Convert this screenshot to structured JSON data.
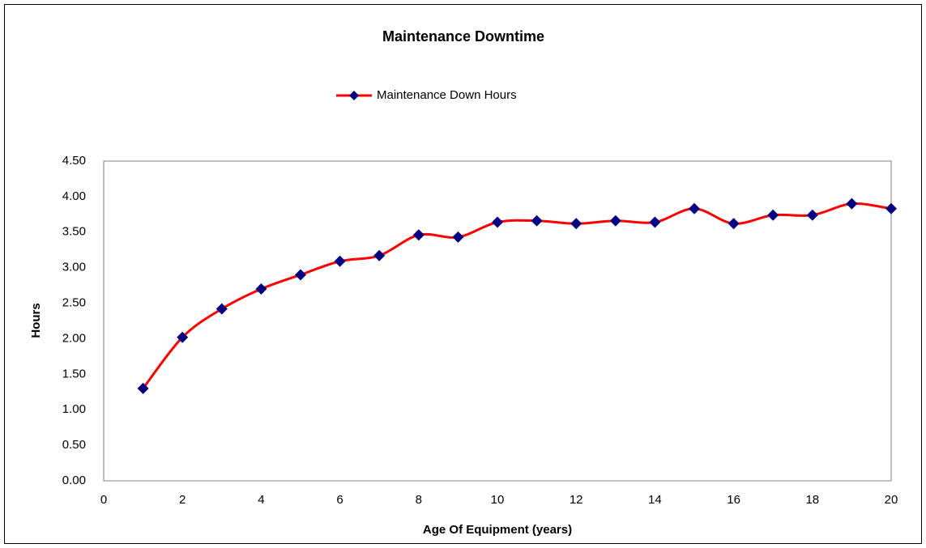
{
  "chart_data": {
    "type": "line",
    "title": "Maintenance Downtime",
    "x_label": "Age Of Equipment (years)",
    "y_label": "Hours",
    "x": [
      1,
      2,
      3,
      4,
      5,
      6,
      7,
      8,
      9,
      10,
      11,
      12,
      13,
      14,
      15,
      16,
      17,
      18,
      19,
      20
    ],
    "series": [
      {
        "name": "Maintenance Down Hours",
        "color": "#ff0000",
        "marker_color": "#000080",
        "values": [
          1.3,
          2.02,
          2.42,
          2.7,
          2.9,
          3.09,
          3.17,
          3.46,
          3.43,
          3.64,
          3.66,
          3.62,
          3.66,
          3.64,
          3.83,
          3.62,
          3.74,
          3.74,
          3.9,
          3.83
        ]
      }
    ],
    "xlim": [
      0,
      20
    ],
    "xticks": [
      0,
      2,
      4,
      6,
      8,
      10,
      12,
      14,
      16,
      18,
      20
    ],
    "ylim": [
      0,
      4.5
    ],
    "yticks": [
      {
        "value": 0,
        "label": "0.00"
      },
      {
        "value": 0.5,
        "label": "0.50"
      },
      {
        "value": 1,
        "label": "1.00"
      },
      {
        "value": 1.5,
        "label": "1.50"
      },
      {
        "value": 2,
        "label": "2.00"
      },
      {
        "value": 2.5,
        "label": "2.50"
      },
      {
        "value": 3,
        "label": "3.00"
      },
      {
        "value": 3.5,
        "label": "3.50"
      },
      {
        "value": 4,
        "label": "4.00"
      },
      {
        "value": 4.5,
        "label": "4.50"
      }
    ],
    "grid": false,
    "legend": "top"
  }
}
